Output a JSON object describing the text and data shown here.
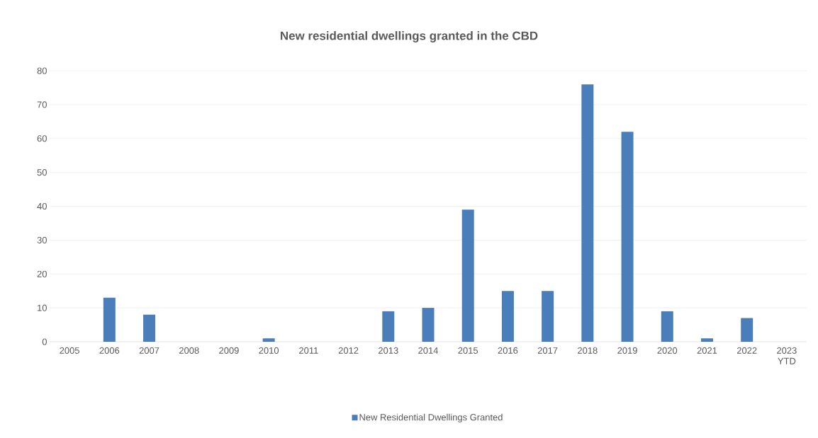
{
  "chart_data": {
    "type": "bar",
    "title": "New residential dwellings granted in the CBD",
    "categories": [
      "2005",
      "2006",
      "2007",
      "2008",
      "2009",
      "2010",
      "2011",
      "2012",
      "2013",
      "2014",
      "2015",
      "2016",
      "2017",
      "2018",
      "2019",
      "2020",
      "2021",
      "2022",
      "2023 YTD"
    ],
    "series": [
      {
        "name": "New Residential Dwellings Granted",
        "color": "#4a7ebb",
        "values": [
          0,
          13,
          8,
          0,
          0,
          1,
          0,
          0,
          9,
          10,
          39,
          15,
          15,
          76,
          62,
          9,
          1,
          7,
          0
        ]
      }
    ],
    "ylim": [
      0,
      80
    ],
    "yticks": [
      0,
      10,
      20,
      30,
      40,
      50,
      60,
      70,
      80
    ],
    "grid": "y",
    "legend": "bottom"
  }
}
